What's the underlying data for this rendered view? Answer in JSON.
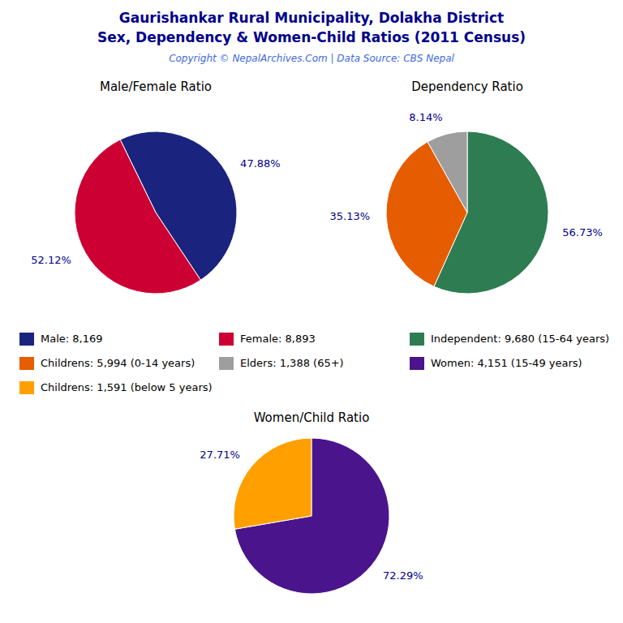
{
  "title": "Gaurishankar Rural Municipality, Dolakha District",
  "subtitle": "Sex, Dependency & Women-Child Ratios (2011 Census)",
  "annotations": [
    "Copyright © NepalArchives.Com | Data Source: CBS Nepal"
  ],
  "chart_data": [
    {
      "type": "pie",
      "title": "Male/Female Ratio",
      "categories": [
        "Male: 8,169",
        "Female: 8,893"
      ],
      "values": [
        47.88,
        52.12
      ],
      "value_labels": [
        "47.88%",
        "52.12%"
      ],
      "colors": [
        "#1a237e",
        "#cc0033"
      ],
      "data_labels": true
    },
    {
      "type": "pie",
      "title": "Dependency Ratio",
      "categories": [
        "Independent: 9,680 (15-64 years)",
        "Childrens: 5,994 (0-14 years)",
        "Elders: 1,388 (65+)"
      ],
      "values": [
        56.73,
        35.13,
        8.14
      ],
      "value_labels": [
        "56.73%",
        "35.13%",
        "8.14%"
      ],
      "colors": [
        "#2e7d52",
        "#e65c00",
        "#9e9e9e"
      ],
      "data_labels": true
    },
    {
      "type": "pie",
      "title": "Women/Child Ratio",
      "categories": [
        "Women: 4,151 (15-49 years)",
        "Childrens: 1,591 (below 5 years)"
      ],
      "values": [
        72.29,
        27.71
      ],
      "value_labels": [
        "72.29%",
        "27.71%"
      ],
      "colors": [
        "#4a148c",
        "#ffa000"
      ],
      "data_labels": true
    }
  ]
}
